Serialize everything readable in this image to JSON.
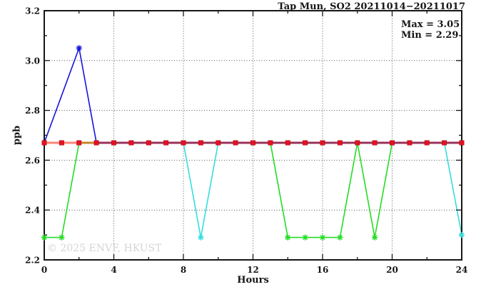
{
  "header": {
    "title": "Tap Mun, SO2 20211014−20211017"
  },
  "watermark": {
    "text": "© 2025 ENVF, HKUST"
  },
  "chart_data": {
    "type": "line",
    "title": "Tap Mun, SO2 20211014−20211017",
    "xlabel": "Hours",
    "ylabel": "ppb",
    "xlim": [
      0,
      24
    ],
    "ylim": [
      2.2,
      3.2
    ],
    "x_tick_labels": [
      "0",
      "4",
      "8",
      "12",
      "16",
      "20",
      "24"
    ],
    "y_tick_labels": [
      "2.2",
      "2.4",
      "2.6",
      "2.8",
      "3.0",
      "3.2"
    ],
    "grid": {
      "x_values": [
        4,
        8,
        12,
        16,
        20
      ],
      "y_values": [
        2.4,
        2.6,
        2.8,
        3.0
      ]
    },
    "annotations": {
      "max_label": "Max = 3.05",
      "min_label": "Min = 2.29"
    },
    "stats": {
      "max": 3.05,
      "min": 2.29
    },
    "hours": [
      0,
      1,
      2,
      3,
      4,
      5,
      6,
      7,
      8,
      9,
      10,
      11,
      12,
      13,
      14,
      15,
      16,
      17,
      18,
      19,
      20,
      21,
      22,
      23,
      24
    ],
    "series": [
      {
        "name": "day-green",
        "color": "#23dd23",
        "marker": "asterisk",
        "draw_line": true,
        "values": [
          2.29,
          2.29,
          2.67,
          2.67,
          2.67,
          2.67,
          2.67,
          2.67,
          2.67,
          2.67,
          2.67,
          2.67,
          2.67,
          2.67,
          2.29,
          2.29,
          2.29,
          2.29,
          2.67,
          2.29,
          2.67,
          2.67,
          2.67,
          2.67,
          2.67
        ],
        "marker_hours": [
          0,
          1,
          14,
          15,
          16,
          17,
          19
        ]
      },
      {
        "name": "day-cyan",
        "color": "#35dede",
        "marker": "asterisk",
        "draw_line": true,
        "values": [
          2.67,
          2.67,
          2.67,
          2.67,
          2.67,
          2.67,
          2.67,
          2.67,
          2.67,
          2.29,
          2.67,
          2.67,
          2.67,
          2.67,
          2.67,
          2.67,
          2.67,
          2.67,
          2.67,
          2.67,
          2.67,
          2.67,
          2.67,
          2.67,
          2.3
        ],
        "marker_hours": [
          9,
          24
        ]
      },
      {
        "name": "day-blue",
        "color": "#1414dd",
        "marker": "asterisk",
        "draw_line": true,
        "values": [
          2.67,
          null,
          3.05,
          2.67,
          2.67,
          2.67,
          2.67,
          2.67,
          2.67,
          2.67,
          2.67,
          2.67,
          2.67,
          2.67,
          2.67,
          2.67,
          2.67,
          2.67,
          2.67,
          2.67,
          2.67,
          2.67,
          2.67,
          2.67,
          2.67
        ],
        "marker_hours": [
          2
        ]
      },
      {
        "name": "day-red",
        "color": "#ff8577",
        "marker": "square",
        "marker_color": "#e6111f",
        "draw_line": false,
        "values": [
          2.67,
          2.67,
          2.67,
          2.67,
          2.67,
          2.67,
          2.67,
          2.67,
          2.67,
          2.67,
          2.67,
          2.67,
          2.67,
          2.67,
          2.67,
          2.67,
          2.67,
          2.67,
          2.67,
          2.67,
          2.67,
          2.67,
          2.67,
          2.67,
          2.67
        ],
        "marker_hours": [
          0,
          1,
          2,
          3,
          4,
          5,
          6,
          7,
          8,
          9,
          10,
          11,
          12,
          13,
          14,
          15,
          16,
          17,
          18,
          19,
          20,
          21,
          22,
          23,
          24
        ]
      }
    ],
    "flat_line_value": 2.67,
    "flat_line_segments": [
      {
        "x_start": 0,
        "x_end": 2,
        "color": "#ff8577"
      },
      {
        "x_start": 2,
        "x_end": 3,
        "color": "#c5862d"
      },
      {
        "x_start": 3,
        "x_end": 24,
        "color": "#993158"
      }
    ]
  }
}
